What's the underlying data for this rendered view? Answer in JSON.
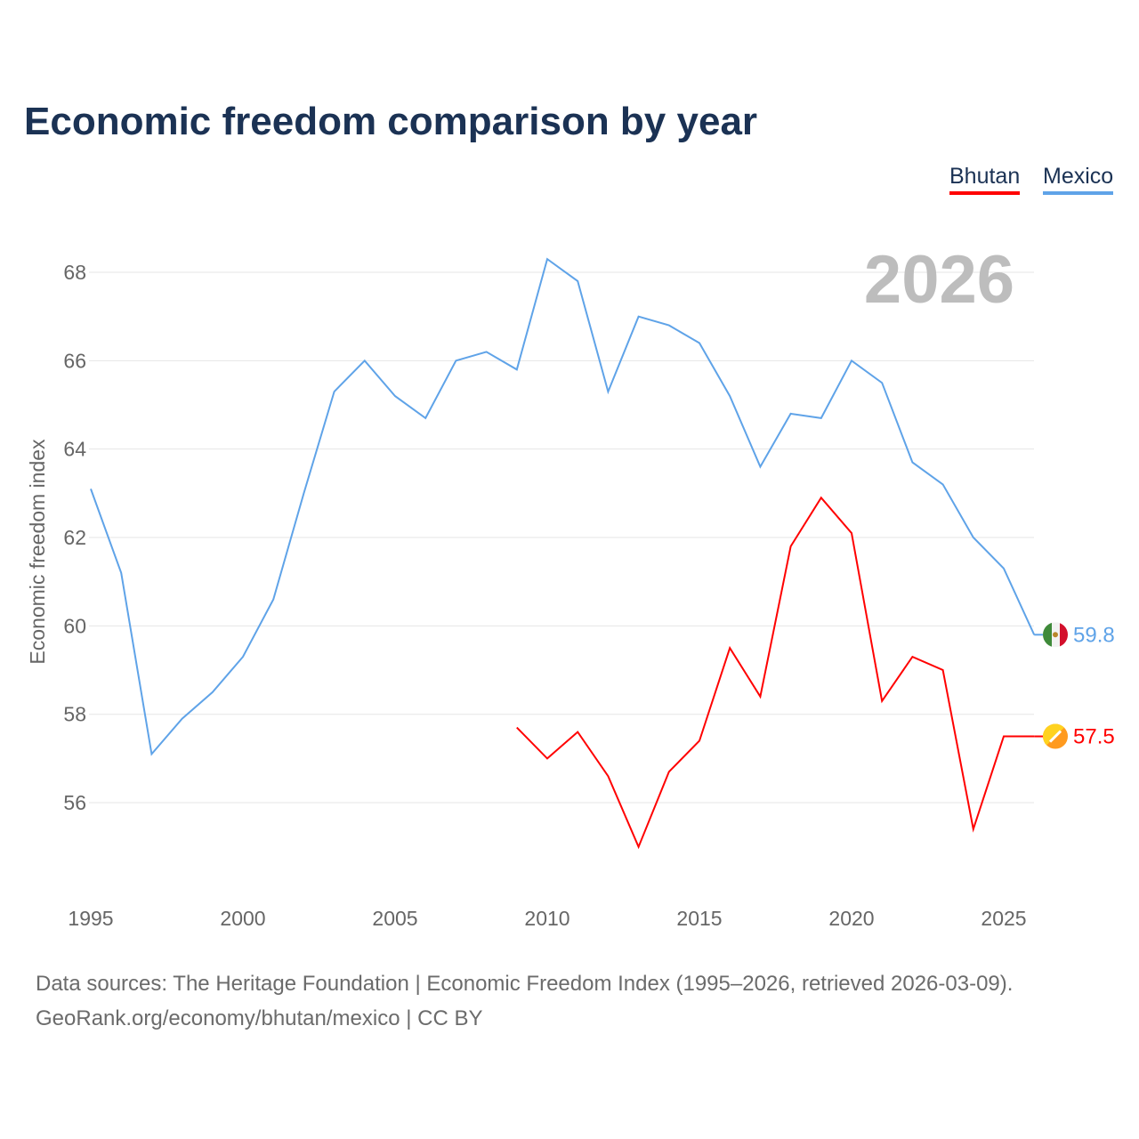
{
  "chart_data": {
    "type": "line",
    "title": "Economic freedom comparison by year",
    "ylabel": "Economic freedom index",
    "xlabel": "",
    "ylim": [
      54,
      69
    ],
    "xlim": [
      1995,
      2026
    ],
    "yticks": [
      56,
      58,
      60,
      62,
      64,
      66,
      68
    ],
    "xticks": [
      1995,
      2000,
      2005,
      2010,
      2015,
      2020,
      2025
    ],
    "grid": true,
    "legend_placement": "top-right",
    "watermark_year": "2026",
    "series": [
      {
        "name": "Bhutan",
        "color": "#ff0000",
        "end_label": "57.5",
        "icon": "bhutan-flag-icon",
        "x": [
          2009,
          2010,
          2011,
          2012,
          2013,
          2014,
          2015,
          2016,
          2017,
          2018,
          2019,
          2020,
          2021,
          2022,
          2023,
          2024,
          2025,
          2026
        ],
        "values": [
          57.7,
          57.0,
          57.6,
          56.6,
          55.0,
          56.7,
          57.4,
          59.5,
          58.4,
          61.8,
          62.9,
          62.1,
          58.3,
          59.3,
          59.0,
          55.4,
          57.5,
          57.5
        ]
      },
      {
        "name": "Mexico",
        "color": "#5fa3e8",
        "end_label": "59.8",
        "icon": "mexico-flag-icon",
        "x": [
          1995,
          1996,
          1997,
          1998,
          1999,
          2000,
          2001,
          2002,
          2003,
          2004,
          2005,
          2006,
          2007,
          2008,
          2009,
          2010,
          2011,
          2012,
          2013,
          2014,
          2015,
          2016,
          2017,
          2018,
          2019,
          2020,
          2021,
          2022,
          2023,
          2024,
          2025,
          2026
        ],
        "values": [
          63.1,
          61.2,
          57.1,
          57.9,
          58.5,
          59.3,
          60.6,
          63.0,
          65.3,
          66.0,
          65.2,
          64.7,
          66.0,
          66.2,
          65.8,
          68.3,
          67.8,
          65.3,
          67.0,
          66.8,
          66.4,
          65.2,
          63.6,
          64.8,
          64.7,
          66.0,
          65.5,
          63.7,
          63.2,
          62.0,
          61.3,
          59.8
        ]
      }
    ]
  },
  "footer": {
    "line1": "Data sources: The Heritage Foundation | Economic Freedom Index (1995–2026, retrieved 2026-03-09).",
    "line2": "GeoRank.org/economy/bhutan/mexico | CC BY"
  }
}
